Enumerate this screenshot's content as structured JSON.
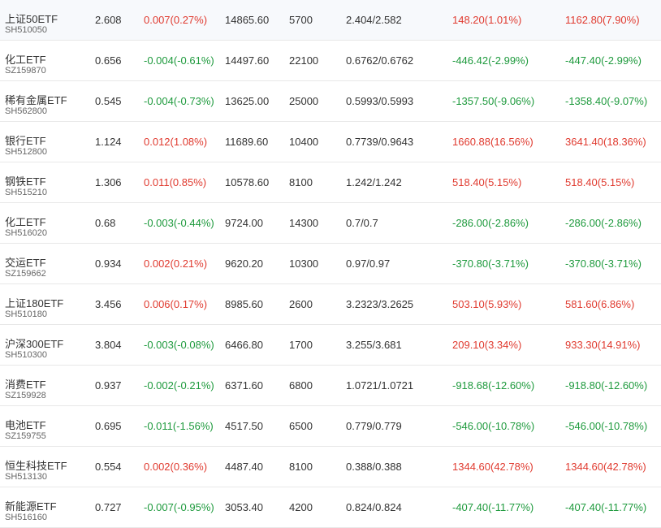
{
  "rows": [
    {
      "name": "上证50ETF",
      "code": "SH510050",
      "price": "2.608",
      "change": "0.007(0.27%)",
      "change_dir": "up",
      "amount": "14865.60",
      "volume": "5700",
      "range": "2.404/2.582",
      "pnl1": "148.20(1.01%)",
      "pnl1_dir": "up",
      "pnl2": "1162.80(7.90%)",
      "pnl2_dir": "up"
    },
    {
      "name": "化工ETF",
      "code": "SZ159870",
      "price": "0.656",
      "change": "-0.004(-0.61%)",
      "change_dir": "down",
      "amount": "14497.60",
      "volume": "22100",
      "range": "0.6762/0.6762",
      "pnl1": "-446.42(-2.99%)",
      "pnl1_dir": "down",
      "pnl2": "-447.40(-2.99%)",
      "pnl2_dir": "down"
    },
    {
      "name": "稀有金属ETF",
      "code": "SH562800",
      "price": "0.545",
      "change": "-0.004(-0.73%)",
      "change_dir": "down",
      "amount": "13625.00",
      "volume": "25000",
      "range": "0.5993/0.5993",
      "pnl1": "-1357.50(-9.06%)",
      "pnl1_dir": "down",
      "pnl2": "-1358.40(-9.07%)",
      "pnl2_dir": "down"
    },
    {
      "name": "银行ETF",
      "code": "SH512800",
      "price": "1.124",
      "change": "0.012(1.08%)",
      "change_dir": "up",
      "amount": "11689.60",
      "volume": "10400",
      "range": "0.7739/0.9643",
      "pnl1": "1660.88(16.56%)",
      "pnl1_dir": "up",
      "pnl2": "3641.40(18.36%)",
      "pnl2_dir": "up"
    },
    {
      "name": "钢铁ETF",
      "code": "SH515210",
      "price": "1.306",
      "change": "0.011(0.85%)",
      "change_dir": "up",
      "amount": "10578.60",
      "volume": "8100",
      "range": "1.242/1.242",
      "pnl1": "518.40(5.15%)",
      "pnl1_dir": "up",
      "pnl2": "518.40(5.15%)",
      "pnl2_dir": "up"
    },
    {
      "name": "化工ETF",
      "code": "SH516020",
      "price": "0.68",
      "change": "-0.003(-0.44%)",
      "change_dir": "down",
      "amount": "9724.00",
      "volume": "14300",
      "range": "0.7/0.7",
      "pnl1": "-286.00(-2.86%)",
      "pnl1_dir": "down",
      "pnl2": "-286.00(-2.86%)",
      "pnl2_dir": "down"
    },
    {
      "name": "交运ETF",
      "code": "SZ159662",
      "price": "0.934",
      "change": "0.002(0.21%)",
      "change_dir": "up",
      "amount": "9620.20",
      "volume": "10300",
      "range": "0.97/0.97",
      "pnl1": "-370.80(-3.71%)",
      "pnl1_dir": "down",
      "pnl2": "-370.80(-3.71%)",
      "pnl2_dir": "down"
    },
    {
      "name": "上证180ETF",
      "code": "SH510180",
      "price": "3.456",
      "change": "0.006(0.17%)",
      "change_dir": "up",
      "amount": "8985.60",
      "volume": "2600",
      "range": "3.2323/3.2625",
      "pnl1": "503.10(5.93%)",
      "pnl1_dir": "up",
      "pnl2": "581.60(6.86%)",
      "pnl2_dir": "up"
    },
    {
      "name": "沪深300ETF",
      "code": "SH510300",
      "price": "3.804",
      "change": "-0.003(-0.08%)",
      "change_dir": "down",
      "amount": "6466.80",
      "volume": "1700",
      "range": "3.255/3.681",
      "pnl1": "209.10(3.34%)",
      "pnl1_dir": "up",
      "pnl2": "933.30(14.91%)",
      "pnl2_dir": "up"
    },
    {
      "name": "消费ETF",
      "code": "SZ159928",
      "price": "0.937",
      "change": "-0.002(-0.21%)",
      "change_dir": "down",
      "amount": "6371.60",
      "volume": "6800",
      "range": "1.0721/1.0721",
      "pnl1": "-918.68(-12.60%)",
      "pnl1_dir": "down",
      "pnl2": "-918.80(-12.60%)",
      "pnl2_dir": "down"
    },
    {
      "name": "电池ETF",
      "code": "SZ159755",
      "price": "0.695",
      "change": "-0.011(-1.56%)",
      "change_dir": "down",
      "amount": "4517.50",
      "volume": "6500",
      "range": "0.779/0.779",
      "pnl1": "-546.00(-10.78%)",
      "pnl1_dir": "down",
      "pnl2": "-546.00(-10.78%)",
      "pnl2_dir": "down"
    },
    {
      "name": "恒生科技ETF",
      "code": "SH513130",
      "price": "0.554",
      "change": "0.002(0.36%)",
      "change_dir": "up",
      "amount": "4487.40",
      "volume": "8100",
      "range": "0.388/0.388",
      "pnl1": "1344.60(42.78%)",
      "pnl1_dir": "up",
      "pnl2": "1344.60(42.78%)",
      "pnl2_dir": "up"
    },
    {
      "name": "新能源ETF",
      "code": "SH516160",
      "price": "0.727",
      "change": "-0.007(-0.95%)",
      "change_dir": "down",
      "amount": "3053.40",
      "volume": "4200",
      "range": "0.824/0.824",
      "pnl1": "-407.40(-11.77%)",
      "pnl1_dir": "down",
      "pnl2": "-407.40(-11.77%)",
      "pnl2_dir": "down"
    }
  ],
  "colors": {
    "up": "#e03a2f",
    "down": "#1e9a3d"
  }
}
